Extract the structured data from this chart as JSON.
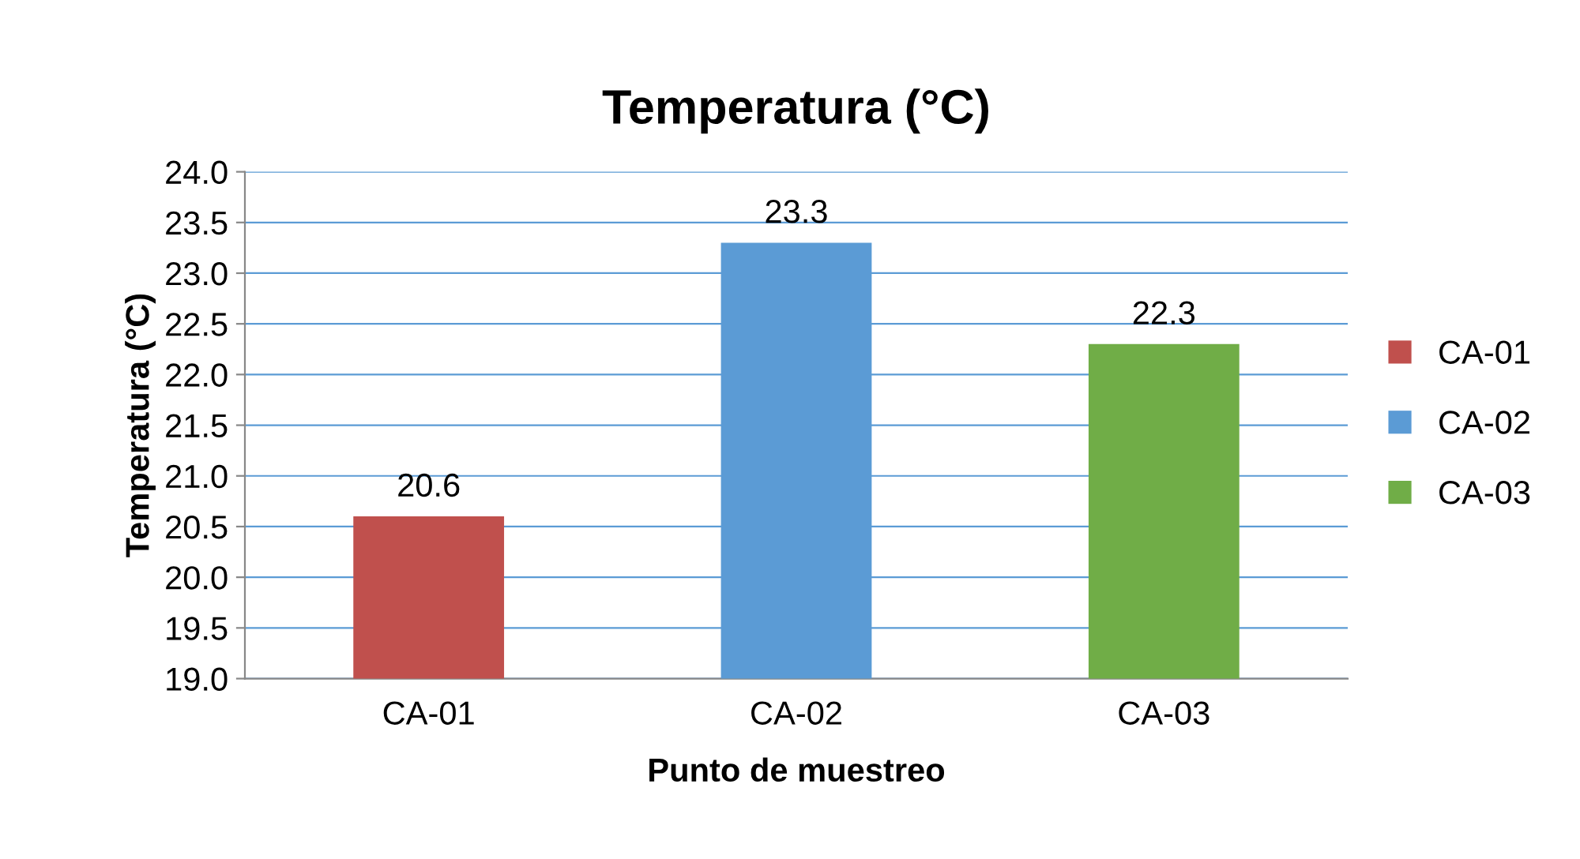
{
  "chart_data": {
    "type": "bar",
    "title": "Temperatura (°C)",
    "xlabel": "Punto de muestreo",
    "ylabel": "Temperatura (°C)",
    "categories": [
      "CA-01",
      "CA-02",
      "CA-03"
    ],
    "series": [
      {
        "name": "CA-01",
        "color": "#c0504d",
        "values": [
          20.6,
          null,
          null
        ]
      },
      {
        "name": "CA-02",
        "color": "#5b9bd5",
        "values": [
          null,
          23.3,
          null
        ]
      },
      {
        "name": "CA-03",
        "color": "#70ad47",
        "values": [
          null,
          null,
          22.3
        ]
      }
    ],
    "ylim": [
      19.0,
      24.0
    ],
    "yticks": [
      {
        "value": 19,
        "label": "19.0"
      },
      19.5,
      {
        "value": 20,
        "label": "20.0"
      },
      20.5,
      {
        "value": 21,
        "label": "21.0"
      },
      21.5,
      {
        "value": 22,
        "label": "22.0"
      },
      22.5,
      {
        "value": 23,
        "label": "23.0"
      },
      23.5,
      {
        "value": 24,
        "label": "24.0"
      }
    ],
    "grid": "y",
    "legend": "right",
    "data_labels": true
  }
}
